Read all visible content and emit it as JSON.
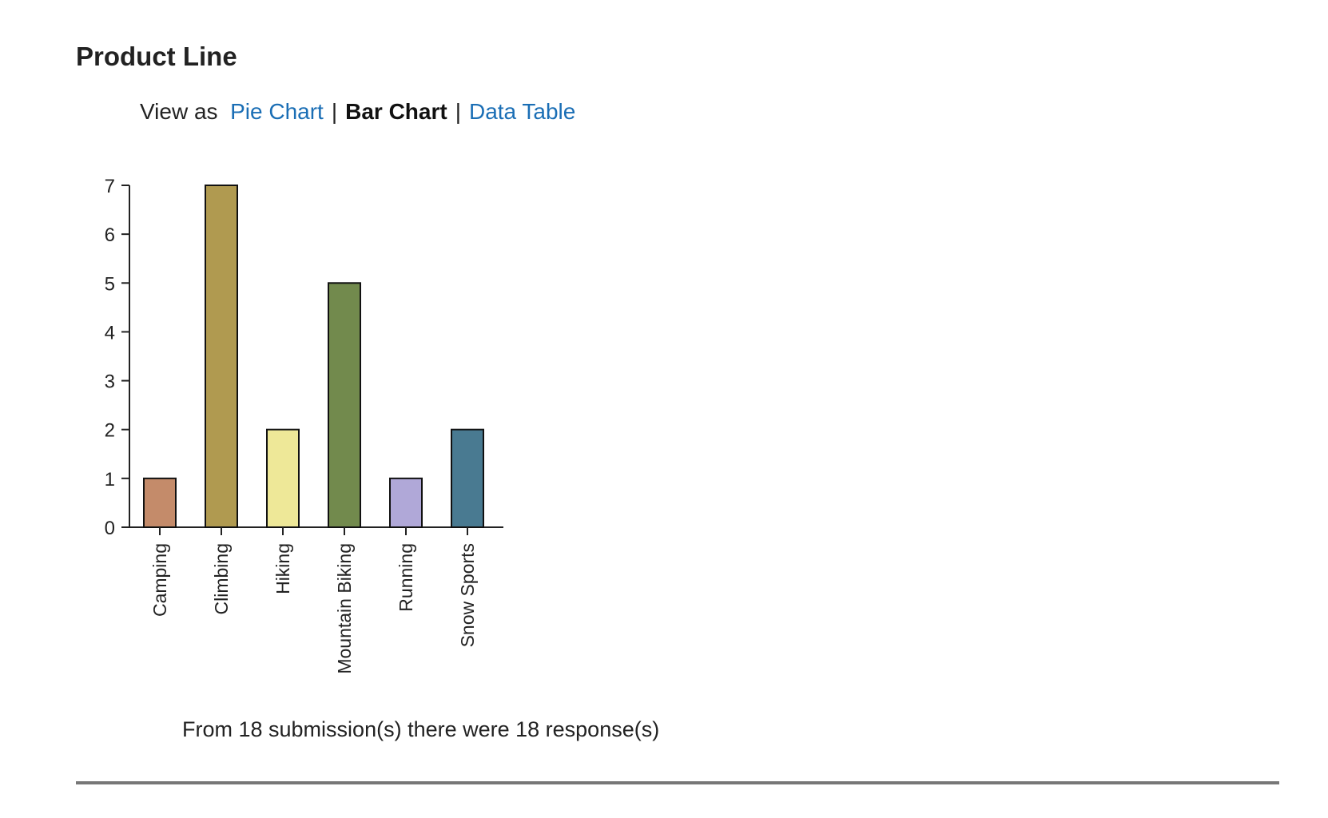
{
  "section": {
    "title": "Product Line"
  },
  "view_switch": {
    "prefix": "View as",
    "pie_label": "Pie Chart",
    "bar_label": "Bar Chart",
    "table_label": "Data Table",
    "separator": "|",
    "link_color": "#1a6eb5"
  },
  "chart_data": {
    "type": "bar",
    "title": "",
    "xlabel": "",
    "ylabel": "",
    "categories": [
      "Camping",
      "Climbing",
      "Hiking",
      "Mountain Biking",
      "Running",
      "Snow Sports"
    ],
    "values": [
      1,
      7,
      2,
      5,
      1,
      2
    ],
    "colors": [
      "#c48b6a",
      "#b09a50",
      "#eee898",
      "#728a4d",
      "#b0a8d8",
      "#497a91"
    ],
    "ylim": [
      0,
      7
    ],
    "yticks": [
      0,
      1,
      2,
      3,
      4,
      5,
      6,
      7
    ],
    "grid": false,
    "legend": "none"
  },
  "summary": {
    "text": "From 18 submission(s) there were 18 response(s)"
  }
}
